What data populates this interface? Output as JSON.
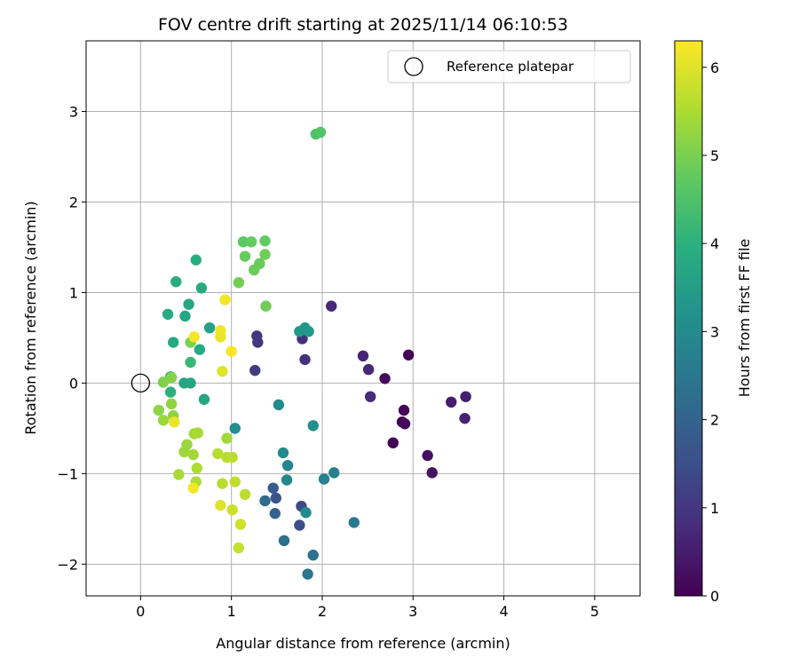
{
  "chart_data": {
    "type": "scatter",
    "title": "FOV centre drift starting at 2025/11/14 06:10:53",
    "xlabel": "Angular distance from reference (arcmin)",
    "ylabel": "Rotation from reference (arcmin)",
    "xlim": [
      -0.6,
      5.5
    ],
    "ylim": [
      -2.35,
      3.78
    ],
    "xticks": [
      0,
      1,
      2,
      3,
      4,
      5
    ],
    "yticks": [
      -2,
      -1,
      0,
      1,
      2,
      3
    ],
    "grid": true,
    "legend": {
      "position": "top-right",
      "entries": [
        "Reference platepar"
      ]
    },
    "reference_point": {
      "x": 0,
      "y": 0,
      "label": "Reference platepar"
    },
    "colorbar": {
      "label": "Hours from first FF file",
      "colormap": "viridis",
      "range": [
        0,
        6.3
      ],
      "ticks": [
        0,
        1,
        2,
        3,
        4,
        5,
        6
      ]
    },
    "points": [
      {
        "x": 2.95,
        "y": 0.31,
        "c": 0.05
      },
      {
        "x": 3.57,
        "y": -0.39,
        "c": 0.6
      },
      {
        "x": 2.78,
        "y": -0.66,
        "c": 0.0
      },
      {
        "x": 2.88,
        "y": -0.43,
        "c": 0.0
      },
      {
        "x": 2.9,
        "y": -0.3,
        "c": 0.1
      },
      {
        "x": 2.91,
        "y": -0.45,
        "c": 0.15
      },
      {
        "x": 3.16,
        "y": -0.8,
        "c": 0.25
      },
      {
        "x": 3.21,
        "y": -0.99,
        "c": 0.3
      },
      {
        "x": 2.69,
        "y": 0.05,
        "c": 0.2
      },
      {
        "x": 3.42,
        "y": -0.21,
        "c": 0.5
      },
      {
        "x": 3.58,
        "y": -0.15,
        "c": 0.55
      },
      {
        "x": 2.45,
        "y": 0.3,
        "c": 0.65
      },
      {
        "x": 2.51,
        "y": 0.15,
        "c": 0.7
      },
      {
        "x": 2.53,
        "y": -0.15,
        "c": 0.75
      },
      {
        "x": 2.1,
        "y": 0.85,
        "c": 0.75
      },
      {
        "x": 1.81,
        "y": 0.26,
        "c": 0.85
      },
      {
        "x": 1.78,
        "y": 0.49,
        "c": 0.9
      },
      {
        "x": 1.28,
        "y": 0.52,
        "c": 1.0
      },
      {
        "x": 1.29,
        "y": 0.45,
        "c": 1.05
      },
      {
        "x": 1.26,
        "y": 0.14,
        "c": 1.1
      },
      {
        "x": 1.77,
        "y": -1.36,
        "c": 1.4
      },
      {
        "x": 1.75,
        "y": -1.57,
        "c": 1.5
      },
      {
        "x": 1.49,
        "y": -1.27,
        "c": 1.6
      },
      {
        "x": 1.46,
        "y": -1.16,
        "c": 1.8
      },
      {
        "x": 1.48,
        "y": -1.44,
        "c": 2.0
      },
      {
        "x": 1.37,
        "y": -1.3,
        "c": 2.2
      },
      {
        "x": 1.58,
        "y": -1.74,
        "c": 2.3
      },
      {
        "x": 1.9,
        "y": -1.9,
        "c": 2.4
      },
      {
        "x": 1.84,
        "y": -2.11,
        "c": 2.5
      },
      {
        "x": 2.35,
        "y": -1.54,
        "c": 2.55
      },
      {
        "x": 2.02,
        "y": -1.06,
        "c": 2.8
      },
      {
        "x": 2.13,
        "y": -0.99,
        "c": 2.75
      },
      {
        "x": 1.62,
        "y": -0.91,
        "c": 2.85
      },
      {
        "x": 1.61,
        "y": -1.07,
        "c": 2.9
      },
      {
        "x": 1.57,
        "y": -0.77,
        "c": 2.95
      },
      {
        "x": 1.52,
        "y": -0.24,
        "c": 3.0
      },
      {
        "x": 1.9,
        "y": -0.47,
        "c": 3.1
      },
      {
        "x": 1.82,
        "y": -1.43,
        "c": 3.0
      },
      {
        "x": 1.04,
        "y": -0.5,
        "c": 3.1
      },
      {
        "x": 1.75,
        "y": 0.57,
        "c": 3.3
      },
      {
        "x": 1.81,
        "y": 0.61,
        "c": 3.3
      },
      {
        "x": 1.85,
        "y": 0.57,
        "c": 3.35
      },
      {
        "x": 0.76,
        "y": 0.61,
        "c": 3.6
      },
      {
        "x": 0.7,
        "y": -0.18,
        "c": 3.7
      },
      {
        "x": 0.48,
        "y": 0.0,
        "c": 3.7
      },
      {
        "x": 0.55,
        "y": 0.0,
        "c": 3.75
      },
      {
        "x": 0.53,
        "y": 0.87,
        "c": 3.7
      },
      {
        "x": 0.49,
        "y": 0.74,
        "c": 3.75
      },
      {
        "x": 0.36,
        "y": 0.45,
        "c": 3.8
      },
      {
        "x": 0.3,
        "y": 0.76,
        "c": 3.85
      },
      {
        "x": 0.39,
        "y": 1.12,
        "c": 3.9
      },
      {
        "x": 0.61,
        "y": 1.36,
        "c": 3.9
      },
      {
        "x": 0.67,
        "y": 1.05,
        "c": 3.85
      },
      {
        "x": 0.65,
        "y": 0.37,
        "c": 3.8
      },
      {
        "x": 0.55,
        "y": 0.23,
        "c": 4.2
      },
      {
        "x": 0.33,
        "y": -0.1,
        "c": 4.0
      },
      {
        "x": 0.33,
        "y": 0.07,
        "c": 4.1
      },
      {
        "x": 1.93,
        "y": 2.75,
        "c": 4.5
      },
      {
        "x": 1.98,
        "y": 2.77,
        "c": 4.55
      },
      {
        "x": 1.13,
        "y": 1.56,
        "c": 4.7
      },
      {
        "x": 1.22,
        "y": 1.56,
        "c": 4.75
      },
      {
        "x": 1.37,
        "y": 1.57,
        "c": 4.75
      },
      {
        "x": 1.15,
        "y": 1.4,
        "c": 4.8
      },
      {
        "x": 1.31,
        "y": 1.32,
        "c": 4.8
      },
      {
        "x": 1.25,
        "y": 1.25,
        "c": 4.85
      },
      {
        "x": 1.37,
        "y": 1.42,
        "c": 4.9
      },
      {
        "x": 1.08,
        "y": 1.11,
        "c": 4.95
      },
      {
        "x": 1.38,
        "y": 0.85,
        "c": 4.9
      },
      {
        "x": 0.55,
        "y": 0.45,
        "c": 5.0
      },
      {
        "x": 0.25,
        "y": 0.01,
        "c": 5.05
      },
      {
        "x": 0.34,
        "y": 0.06,
        "c": 5.1
      },
      {
        "x": 0.2,
        "y": -0.3,
        "c": 5.2
      },
      {
        "x": 0.36,
        "y": -0.36,
        "c": 5.2
      },
      {
        "x": 0.25,
        "y": -0.41,
        "c": 5.3
      },
      {
        "x": 0.34,
        "y": -0.23,
        "c": 5.2
      },
      {
        "x": 0.51,
        "y": -0.68,
        "c": 5.3
      },
      {
        "x": 0.48,
        "y": -0.76,
        "c": 5.35
      },
      {
        "x": 0.58,
        "y": -0.79,
        "c": 5.4
      },
      {
        "x": 0.42,
        "y": -1.01,
        "c": 5.45
      },
      {
        "x": 0.62,
        "y": -0.94,
        "c": 5.5
      },
      {
        "x": 0.61,
        "y": -1.09,
        "c": 5.5
      },
      {
        "x": 0.59,
        "y": -0.56,
        "c": 5.4
      },
      {
        "x": 0.63,
        "y": -0.55,
        "c": 5.45
      },
      {
        "x": 0.95,
        "y": -0.61,
        "c": 5.4
      },
      {
        "x": 0.85,
        "y": -0.78,
        "c": 5.6
      },
      {
        "x": 0.95,
        "y": -0.82,
        "c": 5.6
      },
      {
        "x": 1.01,
        "y": -0.82,
        "c": 5.65
      },
      {
        "x": 0.9,
        "y": -1.11,
        "c": 5.6
      },
      {
        "x": 1.04,
        "y": -1.09,
        "c": 5.7
      },
      {
        "x": 1.15,
        "y": -1.23,
        "c": 5.65
      },
      {
        "x": 1.01,
        "y": -1.4,
        "c": 5.8
      },
      {
        "x": 1.1,
        "y": -1.56,
        "c": 5.85
      },
      {
        "x": 1.08,
        "y": -1.82,
        "c": 5.75
      },
      {
        "x": 0.88,
        "y": -1.35,
        "c": 6.0
      },
      {
        "x": 0.58,
        "y": -1.16,
        "c": 6.2
      },
      {
        "x": 0.37,
        "y": -0.43,
        "c": 6.1
      },
      {
        "x": 0.59,
        "y": 0.51,
        "c": 6.2
      },
      {
        "x": 0.93,
        "y": 0.92,
        "c": 6.2
      },
      {
        "x": 0.88,
        "y": 0.58,
        "c": 6.2
      },
      {
        "x": 0.88,
        "y": 0.51,
        "c": 6.1
      },
      {
        "x": 1.0,
        "y": 0.35,
        "c": 6.25
      },
      {
        "x": 0.9,
        "y": 0.13,
        "c": 6.0
      }
    ]
  }
}
